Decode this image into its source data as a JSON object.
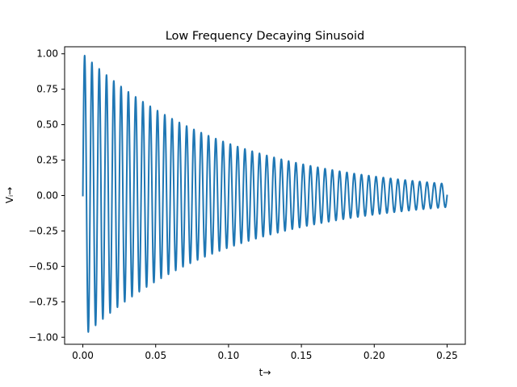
{
  "chart_data": {
    "type": "line",
    "title": "Low Frequency Decaying Sinusoid",
    "xlabel": "t→",
    "ylabel": "Vᵢ→",
    "xlim": [
      -0.0125,
      0.2625
    ],
    "ylim": [
      -1.0497,
      1.0497
    ],
    "xticks": [
      0.0,
      0.05,
      0.1,
      0.15,
      0.2,
      0.25
    ],
    "xtick_labels": [
      "0.00",
      "0.05",
      "0.10",
      "0.15",
      "0.20",
      "0.25"
    ],
    "yticks": [
      -1.0,
      -0.75,
      -0.5,
      -0.25,
      0.0,
      0.25,
      0.5,
      0.75,
      1.0
    ],
    "ytick_labels": [
      "−1.00",
      "−0.75",
      "−0.50",
      "−0.25",
      "0.00",
      "0.25",
      "0.50",
      "0.75",
      "1.00"
    ],
    "grid": false,
    "series": [
      {
        "function": "exp(-10*t)*sin(2*pi*200*t)",
        "t_range": [
          0,
          0.25
        ],
        "envelope": "exp(-10*t)",
        "frequency_hz": 200,
        "color": "#1f77b4"
      }
    ]
  }
}
